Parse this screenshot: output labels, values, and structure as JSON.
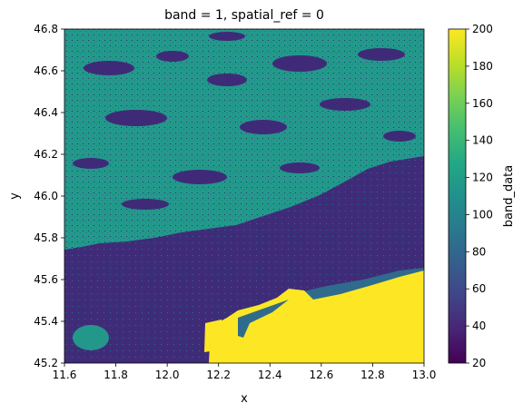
{
  "chart_data": {
    "type": "heatmap",
    "title": "band = 1, spatial_ref = 0",
    "xlabel": "x",
    "ylabel": "y",
    "xlim": [
      11.6,
      13.0
    ],
    "ylim": [
      45.2,
      46.8
    ],
    "xticks": [
      "11.6",
      "11.8",
      "12.0",
      "12.2",
      "12.4",
      "12.6",
      "12.8",
      "13.0"
    ],
    "yticks": [
      "45.2",
      "45.4",
      "45.6",
      "45.8",
      "46.0",
      "46.2",
      "46.4",
      "46.6",
      "46.8"
    ],
    "colorbar": {
      "label": "band_data",
      "colormap": "viridis",
      "range": [
        20,
        200
      ],
      "ticks": [
        "20",
        "40",
        "60",
        "80",
        "100",
        "120",
        "140",
        "160",
        "180",
        "200"
      ]
    },
    "categories_approx": {
      "low": 30,
      "mid_dark": 70,
      "teal": 110,
      "yellow": 200
    },
    "colors": {
      "low": "#3b2a78",
      "low2": "#44207a",
      "mid_dark": "#2c6e8e",
      "teal": "#1f9e89",
      "teal2": "#25a38a",
      "yellow": "#fde725"
    }
  }
}
